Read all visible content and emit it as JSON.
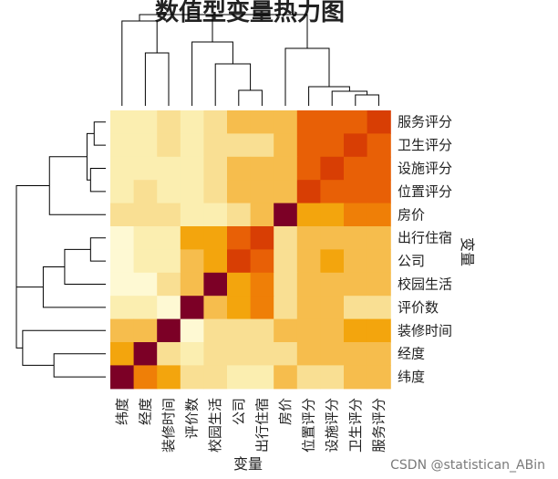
{
  "chart_data": {
    "type": "heatmap",
    "title": "数值型变量热力图",
    "xlabel": "变量",
    "ylabel": "变量",
    "variables_top_to_bottom": [
      "服务评分",
      "卫生评分",
      "设施评分",
      "位置评分",
      "房价",
      "出行住宿",
      "公司",
      "校园生活",
      "评价数",
      "装修时间",
      "经度",
      "纬度"
    ],
    "variables_left_to_right": [
      "纬度",
      "经度",
      "装修时间",
      "评价数",
      "校园生活",
      "公司",
      "出行住宿",
      "房价",
      "位置评分",
      "设施评分",
      "卫生评分",
      "服务评分"
    ],
    "value_scale": "0 = light yellow (low), 4 = orange, 7 = red, 8 = dark red / diagonal",
    "values": [
      [
        1,
        1,
        2,
        1,
        2,
        3,
        3,
        3,
        6,
        6,
        6,
        7
      ],
      [
        1,
        1,
        2,
        1,
        2,
        2,
        2,
        3,
        6,
        6,
        7,
        6
      ],
      [
        1,
        1,
        1,
        1,
        2,
        3,
        3,
        3,
        6,
        7,
        6,
        6
      ],
      [
        1,
        2,
        1,
        1,
        2,
        3,
        3,
        3,
        7,
        6,
        6,
        6
      ],
      [
        2,
        2,
        2,
        1,
        1,
        2,
        3,
        8,
        4,
        4,
        5,
        5
      ],
      [
        0,
        1,
        1,
        4,
        4,
        6,
        7,
        2,
        3,
        3,
        3,
        3
      ],
      [
        0,
        1,
        1,
        3,
        4,
        7,
        6,
        2,
        3,
        4,
        3,
        3
      ],
      [
        0,
        0,
        2,
        3,
        8,
        4,
        5,
        2,
        3,
        3,
        3,
        3
      ],
      [
        1,
        1,
        0,
        8,
        3,
        4,
        5,
        2,
        3,
        3,
        2,
        2
      ],
      [
        3,
        3,
        8,
        0,
        2,
        2,
        2,
        3,
        3,
        3,
        4,
        4
      ],
      [
        4,
        8,
        2,
        1,
        2,
        2,
        2,
        2,
        3,
        3,
        3,
        3
      ],
      [
        8,
        5,
        4,
        2,
        2,
        1,
        1,
        3,
        2,
        2,
        3,
        3
      ]
    ],
    "color_scale": [
      "#fef9d3",
      "#fbeeb0",
      "#f9df93",
      "#f6bd4d",
      "#f3a50d",
      "#ef7f07",
      "#e86006",
      "#d83e04",
      "#7c0026"
    ]
  },
  "watermark": "CSDN @statistican_ABin"
}
